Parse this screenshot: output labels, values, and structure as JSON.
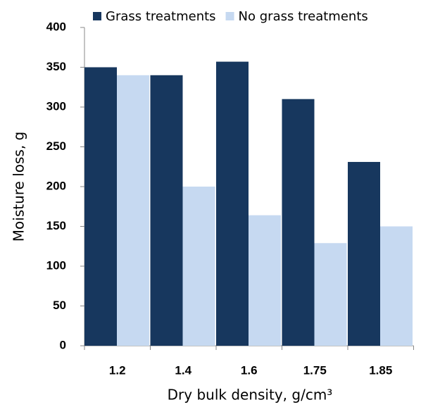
{
  "chart_data": {
    "type": "bar",
    "x_label": "Dry bulk density, g/cm³",
    "y_label": "Moisture loss, g",
    "categories": [
      "1.2",
      "1.4",
      "1.6",
      "1.75",
      "1.85"
    ],
    "series": [
      {
        "name": "Grass treatments",
        "color": "#17375e",
        "values": [
          350,
          340,
          357,
          310,
          231
        ]
      },
      {
        "name": "No grass treatments",
        "color": "#c6d9f1",
        "values": [
          340,
          200,
          164,
          129,
          150
        ]
      }
    ],
    "ylim": [
      0,
      400
    ],
    "yticks": [
      0,
      50,
      100,
      150,
      200,
      250,
      300,
      350,
      400
    ],
    "legend": "top"
  }
}
